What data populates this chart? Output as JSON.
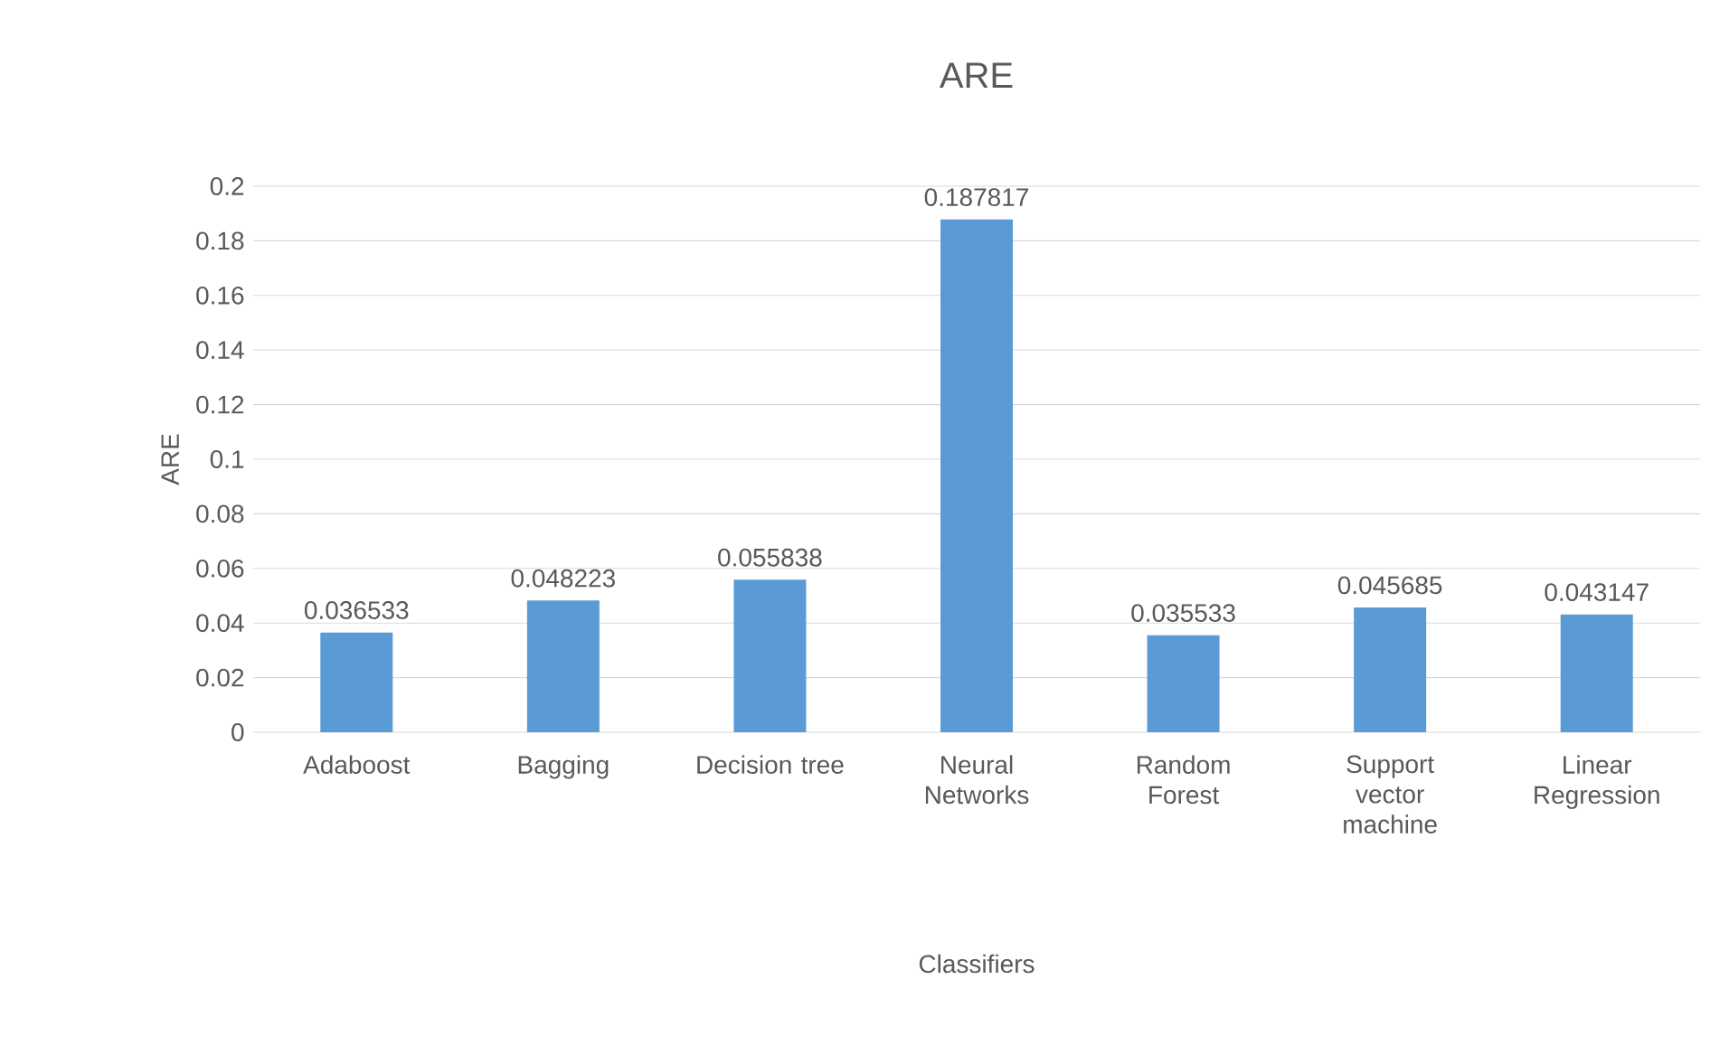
{
  "chart_data": {
    "type": "bar",
    "title": "ARE",
    "xlabel": "Classifiers",
    "ylabel": "ARE",
    "categories": [
      "Adaboost",
      "Bagging",
      "Decision tree",
      "Neural Networks",
      "Random Forest",
      "Support vector machine",
      "Linear Regression"
    ],
    "values": [
      0.036533,
      0.048223,
      0.055838,
      0.187817,
      0.035533,
      0.045685,
      0.043147
    ],
    "color": "#5b9bd5",
    "ylim": [
      0,
      0.2
    ],
    "yticks": [
      0,
      0.02,
      0.04,
      0.06,
      0.08,
      0.1,
      0.12,
      0.14,
      0.16,
      0.18,
      0.2
    ],
    "grid": "y",
    "data_labels": true
  }
}
